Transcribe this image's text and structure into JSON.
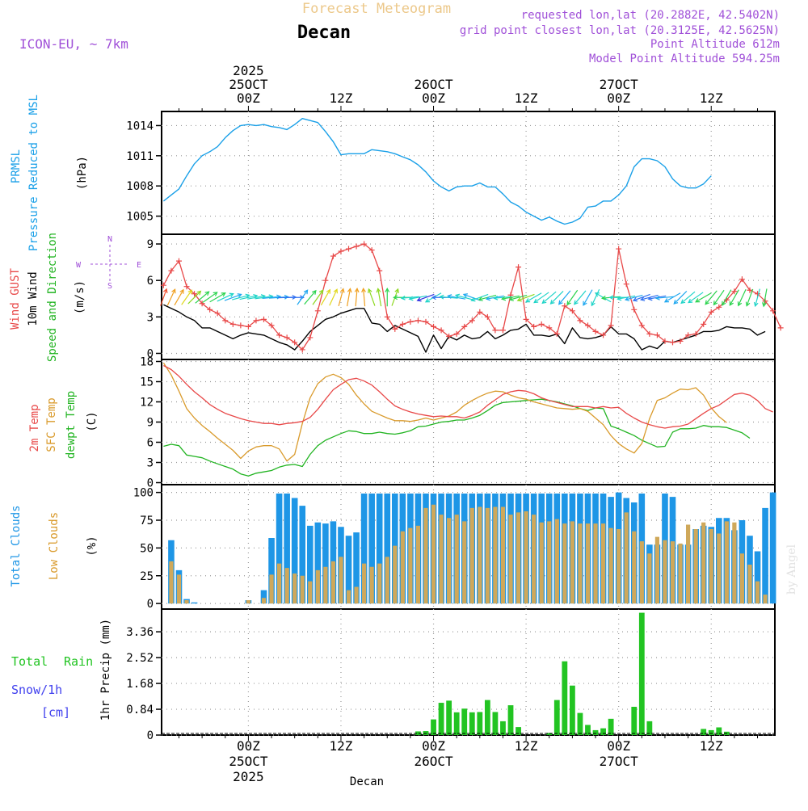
{
  "header": {
    "title": "Forecast Meteogram",
    "location": "Decan",
    "model": "ICON-EU, ~ 7km",
    "requested": "requested lon,lat (20.2882E, 42.5402N)",
    "grid_point": "grid point closest lon,lat (20.3125E, 42.5625N)",
    "point_altitude": "Point Altitude 612m",
    "model_altitude": "Model Point Altitude 594.25m",
    "footer_location": "Decan",
    "watermark": "by Angel"
  },
  "colors": {
    "pressure": "#1aa0e8",
    "gust": "#e84848",
    "wind": "#000000",
    "temp": "#e84848",
    "sfc": "#d99a2b",
    "dewpt": "#22b422",
    "total_clouds": "#1e96e6",
    "low_clouds": "#cfa85a",
    "rain": "#22c422",
    "snow": "#4040ee",
    "purple": "#a050d8",
    "title_orange": "#ecc88a"
  },
  "time_axis": {
    "top_labels": [
      {
        "h": 0,
        "lines": [
          "2025",
          "25OCT",
          "00Z"
        ]
      },
      {
        "h": 12,
        "lines": [
          "12Z"
        ]
      },
      {
        "h": 24,
        "lines": [
          "26OCT",
          "00Z"
        ]
      },
      {
        "h": 36,
        "lines": [
          "12Z"
        ]
      },
      {
        "h": 48,
        "lines": [
          "27OCT",
          "00Z"
        ]
      },
      {
        "h": 60,
        "lines": [
          "12Z"
        ]
      }
    ],
    "bottom_labels": [
      {
        "h": 0,
        "lines": [
          "00Z",
          "25OCT",
          "2025"
        ]
      },
      {
        "h": 12,
        "lines": [
          "12Z"
        ]
      },
      {
        "h": 24,
        "lines": [
          "00Z",
          "26OCT"
        ]
      },
      {
        "h": 36,
        "lines": [
          "12Z"
        ]
      },
      {
        "h": 48,
        "lines": [
          "00Z",
          "27OCT"
        ]
      },
      {
        "h": 60,
        "lines": [
          "12Z"
        ]
      }
    ]
  },
  "chart_data": [
    {
      "type": "line",
      "title": "PRMSL Pressure Reduced to MSL",
      "ylabel_lines": [
        "PRMSL",
        "Pressure Reduced to MSL"
      ],
      "unit": "(hPa)",
      "ylim": [
        1003.2,
        1015.4
      ],
      "yticks": [
        1005,
        1008,
        1011,
        1014
      ],
      "x_start_h": -11,
      "step_h": 1,
      "series": [
        {
          "name": "PRMSL",
          "values": [
            1006.5,
            1007.1,
            1007.7,
            1009.0,
            1010.2,
            1011.0,
            1011.4,
            1011.9,
            1012.8,
            1013.5,
            1014.0,
            1014.1,
            1014.0,
            1014.1,
            1013.9,
            1013.8,
            1013.6,
            1014.1,
            1014.7,
            1014.5,
            1014.3,
            1013.4,
            1012.4,
            1011.1,
            1011.2,
            1011.2,
            1011.2,
            1011.6,
            1011.5,
            1011.4,
            1011.2,
            1010.9,
            1010.6,
            1010.1,
            1009.4,
            1008.5,
            1007.9,
            1007.5,
            1007.9,
            1008.0,
            1008.0,
            1008.3,
            1007.9,
            1007.9,
            1007.2,
            1006.4,
            1006.0,
            1005.4,
            1005.0,
            1004.6,
            1004.9,
            1004.5,
            1004.2,
            1004.4,
            1004.8,
            1005.9,
            1006.0,
            1006.5,
            1006.5,
            1007.1,
            1008.0,
            1009.9,
            1010.7,
            1010.7,
            1010.5,
            1009.9,
            1008.7,
            1008.0,
            1007.8,
            1007.8,
            1008.2,
            1009.0
          ]
        }
      ]
    },
    {
      "type": "line",
      "title": "Wind GUST / 10m Wind Speed and Direction",
      "ylabel_lines": [
        "Wind GUST",
        "10m Wind",
        "Speed and Direction"
      ],
      "unit": "(m/s)",
      "compass": {
        "n": "N",
        "s": "S",
        "w": "W",
        "e": "E"
      },
      "ylim": [
        -0.5,
        9.8
      ],
      "yticks": [
        0,
        3,
        6,
        9
      ],
      "x_start_h": -11,
      "step_h": 1,
      "series": [
        {
          "name": "Wind GUST",
          "values": [
            5.6,
            6.8,
            7.6,
            5.5,
            4.9,
            4.1,
            3.6,
            3.3,
            2.7,
            2.4,
            2.3,
            2.2,
            2.7,
            2.8,
            2.3,
            1.5,
            1.3,
            0.9,
            0.3,
            1.3,
            3.5,
            6.0,
            8.0,
            8.4,
            8.6,
            8.8,
            9.0,
            8.5,
            6.8,
            3.0,
            2.0,
            2.4,
            2.6,
            2.7,
            2.6,
            2.2,
            1.9,
            1.4,
            1.6,
            2.2,
            2.7,
            3.4,
            3.0,
            1.9,
            1.9,
            4.8,
            7.1,
            2.8,
            2.2,
            2.4,
            2.1,
            1.6,
            3.9,
            3.5,
            2.7,
            2.3,
            1.8,
            1.5,
            2.3,
            8.6,
            5.7,
            3.6,
            2.3,
            1.6,
            1.5,
            1.0,
            0.9,
            1.0,
            1.5,
            1.6,
            2.4,
            3.4,
            3.8,
            4.4,
            5.1,
            6.1,
            5.2,
            4.9,
            4.3,
            3.5,
            2.1
          ]
        },
        {
          "name": "10m Wind",
          "values": [
            4.0,
            3.7,
            3.4,
            3.0,
            2.7,
            2.1,
            2.1,
            1.8,
            1.5,
            1.2,
            1.5,
            1.7,
            1.6,
            1.5,
            1.2,
            0.9,
            0.7,
            0.3,
            1.0,
            1.8,
            2.3,
            2.8,
            3.0,
            3.3,
            3.5,
            3.7,
            3.7,
            2.5,
            2.4,
            1.8,
            2.3,
            2.0,
            1.7,
            1.4,
            0.1,
            1.5,
            0.4,
            1.4,
            1.1,
            1.5,
            1.2,
            1.3,
            1.8,
            1.2,
            1.5,
            1.9,
            2.0,
            2.4,
            1.5,
            1.5,
            1.4,
            1.6,
            0.8,
            2.1,
            1.3,
            1.2,
            1.3,
            1.5,
            2.2,
            1.6,
            1.6,
            1.2,
            0.3,
            0.6,
            0.4,
            1.0,
            0.9,
            1.1,
            1.3,
            1.5,
            1.8,
            1.8,
            1.9,
            2.2,
            2.1,
            2.1,
            2.0,
            1.5,
            1.8
          ]
        }
      ],
      "wind_arrows": {
        "x_start_h": -11,
        "step_h": 1,
        "dir_deg": [
          200,
          205,
          210,
          215,
          225,
          230,
          235,
          240,
          245,
          250,
          255,
          258,
          260,
          262,
          264,
          266,
          268,
          270,
          215,
          220,
          215,
          210,
          205,
          195,
          190,
          185,
          175,
          160,
          170,
          180,
          200,
          90,
          85,
          80,
          70,
          60,
          90,
          95,
          100,
          105,
          110,
          70,
          75,
          80,
          85,
          80,
          75,
          70,
          60,
          55,
          50,
          45,
          40,
          35,
          40,
          30,
          25,
          120,
          85,
          90,
          80,
          75,
          70,
          75,
          80,
          85,
          60,
          45,
          50,
          55,
          60,
          40,
          35,
          30,
          30,
          25,
          20,
          15,
          10,
          5,
          0
        ],
        "speed": [
          4.0,
          3.7,
          3.4,
          3.0,
          2.7,
          2.1,
          2.1,
          1.8,
          1.5,
          1.2,
          1.5,
          1.7,
          1.6,
          1.5,
          1.2,
          0.9,
          0.7,
          0.3,
          1.0,
          1.8,
          2.3,
          2.8,
          3.0,
          3.3,
          3.5,
          3.7,
          3.7,
          2.5,
          2.4,
          1.8,
          2.3,
          2.0,
          1.7,
          1.4,
          0.1,
          1.5,
          0.4,
          1.4,
          1.1,
          1.5,
          1.2,
          1.3,
          1.8,
          1.2,
          1.5,
          1.9,
          2.0,
          2.4,
          1.5,
          1.5,
          1.4,
          1.6,
          0.8,
          2.1,
          1.3,
          1.2,
          1.3,
          1.5,
          2.2,
          1.6,
          1.6,
          1.2,
          0.3,
          0.6,
          0.4,
          1.0,
          0.9,
          1.1,
          1.3,
          1.5,
          1.8,
          1.8,
          1.9,
          2.2,
          2.1,
          2.1,
          2.0,
          1.5,
          1.8
        ]
      }
    },
    {
      "type": "line",
      "title": "2m Temp / SFC Temp / dewpt Temp",
      "ylabel_lines": [
        "2m Temp",
        "SFC Temp",
        "dewpt Temp"
      ],
      "unit": "(C)",
      "ylim": [
        -0.3,
        18.3
      ],
      "yticks": [
        0,
        3,
        6,
        9,
        12,
        15,
        18
      ],
      "x_start_h": -11,
      "step_h": 1,
      "series": [
        {
          "name": "2m Temp",
          "values": [
            17.4,
            16.8,
            15.8,
            14.6,
            13.5,
            12.6,
            11.6,
            10.9,
            10.3,
            9.9,
            9.5,
            9.2,
            9.0,
            8.8,
            8.8,
            8.6,
            8.8,
            8.9,
            9.1,
            9.7,
            10.9,
            12.4,
            13.8,
            14.6,
            15.3,
            15.5,
            15.1,
            14.5,
            13.5,
            12.4,
            11.4,
            10.9,
            10.5,
            10.2,
            10.0,
            9.8,
            9.9,
            9.8,
            9.8,
            9.6,
            10.0,
            10.5,
            11.5,
            12.3,
            13.1,
            13.5,
            13.7,
            13.6,
            13.2,
            12.6,
            12.2,
            11.9,
            11.6,
            11.3,
            11.3,
            11.3,
            11.1,
            11.3,
            11.1,
            11.2,
            10.3,
            9.6,
            9.0,
            8.6,
            8.3,
            8.1,
            8.3,
            8.4,
            8.7,
            9.5,
            10.3,
            11.0,
            11.5,
            12.3,
            13.1,
            13.3,
            13.0,
            12.2,
            11.0,
            10.5
          ]
        },
        {
          "name": "SFC Temp",
          "values": [
            17.8,
            16.0,
            13.6,
            11.0,
            9.6,
            8.5,
            7.6,
            6.6,
            5.7,
            4.8,
            3.6,
            4.7,
            5.3,
            5.5,
            5.5,
            5.0,
            3.2,
            4.2,
            8.8,
            12.6,
            14.7,
            15.7,
            16.1,
            15.6,
            14.6,
            13.0,
            11.7,
            10.6,
            10.1,
            9.6,
            9.2,
            9.2,
            9.1,
            9.3,
            9.6,
            9.3,
            9.6,
            9.9,
            10.5,
            11.5,
            12.2,
            12.8,
            13.3,
            13.6,
            13.5,
            13.0,
            12.6,
            12.4,
            12.0,
            11.7,
            11.4,
            11.1,
            11.0,
            10.9,
            11.0,
            10.6,
            9.6,
            8.6,
            7.0,
            5.8,
            5.0,
            4.4,
            5.8,
            9.5,
            12.2,
            12.6,
            13.3,
            13.9,
            13.8,
            14.1,
            13.0,
            11.1,
            9.8,
            8.9
          ]
        },
        {
          "name": "dewpt Temp",
          "values": [
            5.4,
            5.7,
            5.5,
            4.1,
            3.9,
            3.7,
            3.2,
            2.8,
            2.4,
            2.0,
            1.3,
            1.0,
            1.4,
            1.6,
            1.8,
            2.3,
            2.6,
            2.7,
            2.4,
            4.2,
            5.5,
            6.3,
            6.8,
            7.3,
            7.7,
            7.6,
            7.3,
            7.3,
            7.5,
            7.3,
            7.2,
            7.4,
            7.7,
            8.3,
            8.4,
            8.7,
            9.0,
            9.1,
            9.3,
            9.3,
            9.6,
            10.0,
            10.7,
            11.5,
            11.9,
            12.0,
            12.1,
            12.2,
            12.3,
            12.4,
            12.2,
            12.0,
            11.7,
            11.4,
            11.0,
            10.7,
            11.1,
            11.0,
            8.4,
            8.0,
            7.5,
            7.0,
            6.3,
            5.8,
            5.3,
            5.4,
            7.5,
            8.0,
            8.0,
            8.1,
            8.5,
            8.3,
            8.3,
            8.2,
            7.8,
            7.4,
            6.6
          ]
        }
      ]
    },
    {
      "type": "bar",
      "title": "Total Clouds / Low Clouds",
      "ylabel_lines": [
        "Total Clouds",
        "Low Clouds"
      ],
      "unit": "(%)",
      "ylim": [
        -5,
        107
      ],
      "yticks": [
        0,
        25,
        50,
        75,
        100
      ],
      "x_start_h": -11,
      "step_h": 1,
      "series": [
        {
          "name": "Total Clouds",
          "values": [
            22,
            57,
            30,
            4,
            1,
            0,
            0,
            0,
            0,
            0,
            0,
            3,
            0,
            12,
            59,
            99,
            99,
            95,
            88,
            70,
            73,
            72,
            74,
            69,
            61,
            64,
            99,
            99,
            99,
            99,
            99,
            99,
            99,
            99,
            99,
            99,
            99,
            99,
            99,
            99,
            99,
            99,
            99,
            99,
            99,
            99,
            99,
            99,
            99,
            99,
            99,
            99,
            99,
            99,
            99,
            99,
            99,
            99,
            96,
            100,
            95,
            91,
            99,
            53,
            53,
            99,
            96,
            53,
            53,
            67,
            70,
            69,
            77,
            77,
            66,
            75,
            61,
            47,
            86,
            100,
            100
          ]
        },
        {
          "name": "Low Clouds",
          "values": [
            9,
            38,
            26,
            3,
            0,
            0,
            0,
            0,
            0,
            0,
            0,
            3,
            0,
            5,
            26,
            36,
            32,
            27,
            25,
            20,
            30,
            33,
            38,
            42,
            12,
            15,
            36,
            33,
            36,
            42,
            52,
            65,
            68,
            70,
            86,
            89,
            80,
            77,
            80,
            74,
            86,
            87,
            86,
            87,
            87,
            80,
            82,
            83,
            80,
            73,
            74,
            76,
            72,
            74,
            72,
            72,
            72,
            72,
            68,
            67,
            82,
            65,
            56,
            45,
            60,
            57,
            56,
            54,
            71,
            67,
            73,
            67,
            63,
            74,
            73,
            45,
            35,
            20,
            8
          ]
        }
      ]
    },
    {
      "type": "bar",
      "title": "1hr Precip",
      "ylabel": "1hr Precip (mm)",
      "legend": [
        "Total",
        "Rain",
        "Snow/1h",
        "[cm]"
      ],
      "ylim": [
        0,
        4.1
      ],
      "yticks": [
        0,
        0.84,
        1.68,
        2.52,
        3.36
      ],
      "ytick_labels": [
        "0",
        "0.84",
        "1.68",
        "2.52",
        "3.36"
      ],
      "x_start_h": -11,
      "step_h": 1,
      "series": [
        {
          "name": "Rain",
          "values": [
            0,
            0,
            0,
            0,
            0,
            0,
            0,
            0,
            0,
            0,
            0,
            0,
            0,
            0,
            0,
            0,
            0,
            0,
            0,
            0,
            0,
            0,
            0,
            0,
            0,
            0,
            0,
            0,
            0,
            0,
            0,
            0,
            0,
            0.12,
            0.13,
            0.51,
            1.05,
            1.12,
            0.74,
            0.86,
            0.74,
            0.75,
            1.14,
            0.75,
            0.45,
            0.97,
            0.26,
            0,
            0,
            0,
            0.07,
            1.14,
            2.4,
            1.61,
            0.72,
            0.33,
            0.16,
            0.22,
            0.53,
            0,
            0,
            0.92,
            3.98,
            0.45,
            0,
            0,
            0,
            0,
            0,
            0,
            0.2,
            0.16,
            0.25,
            0.11,
            0,
            0,
            0,
            0,
            0,
            0,
            0
          ]
        }
      ]
    }
  ]
}
